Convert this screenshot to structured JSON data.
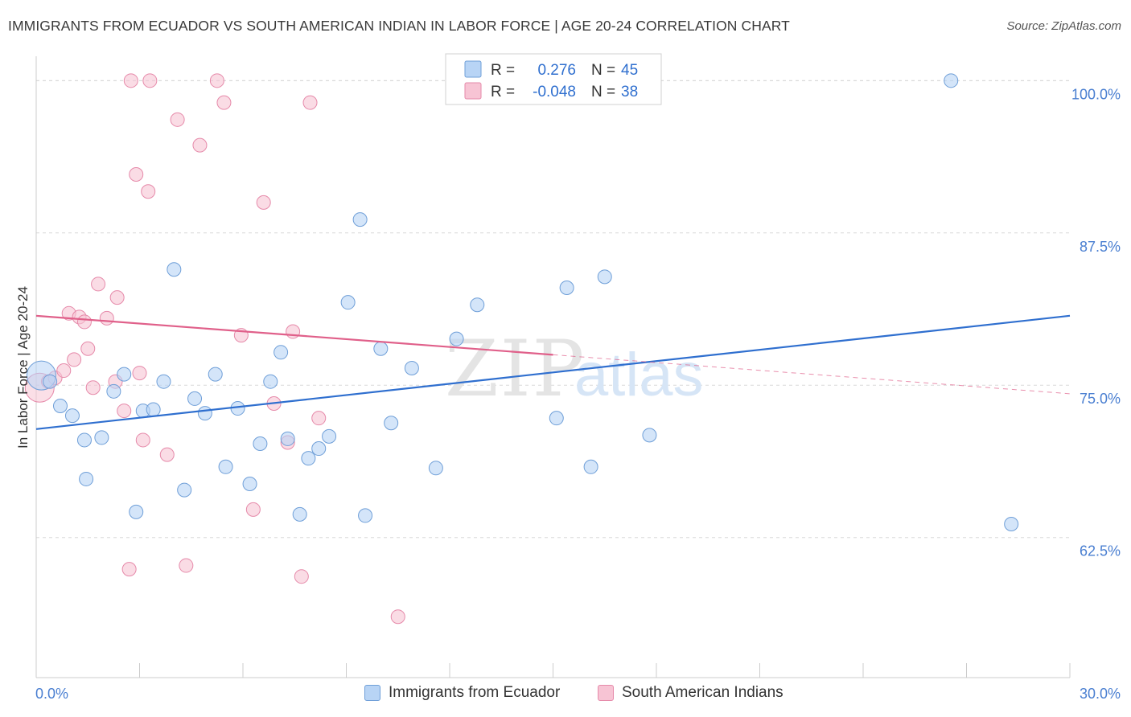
{
  "title": "IMMIGRANTS FROM ECUADOR VS SOUTH AMERICAN INDIAN IN LABOR FORCE | AGE 20-24 CORRELATION CHART",
  "source": "Source: ZipAtlas.com",
  "watermark": {
    "zip": "ZIP",
    "atlas": "atlas"
  },
  "colors": {
    "blue_fill": "#b8d4f5",
    "blue_stroke": "#6f9fd8",
    "blue_line": "#2f6fcf",
    "pink_fill": "#f7c4d4",
    "pink_stroke": "#e68aaa",
    "pink_line": "#e0608a",
    "axis_label": "#4a7fd1",
    "grid": "#d8d8d8"
  },
  "stats_legend": {
    "rows": [
      {
        "r_label": "R =",
        "r_value": "0.276",
        "n_label": "N =",
        "n_value": "45",
        "series": "blue"
      },
      {
        "r_label": "R =",
        "r_value": "-0.048",
        "n_label": "N =",
        "n_value": "38",
        "series": "pink"
      }
    ]
  },
  "chart_data": {
    "type": "scatter",
    "title": "IMMIGRANTS FROM ECUADOR VS SOUTH AMERICAN INDIAN IN LABOR FORCE | AGE 20-24 CORRELATION CHART",
    "xlabel": "",
    "ylabel": "In Labor Force | Age 20-24",
    "xlim": [
      0,
      30
    ],
    "ylim": [
      51,
      102
    ],
    "x_tick_labels": [
      "0.0%",
      "30.0%"
    ],
    "y_ticks": [
      62.5,
      75.0,
      87.5,
      100.0
    ],
    "y_tick_labels": [
      "62.5%",
      "75.0%",
      "87.5%",
      "100.0%"
    ],
    "grid": true,
    "legend_position": "bottom",
    "series": [
      {
        "name": "Immigrants from Ecuador",
        "color": "blue",
        "trend": {
          "x": [
            0,
            30
          ],
          "y": [
            71.4,
            80.7
          ]
        },
        "points": [
          [
            0.15,
            75.8
          ],
          [
            0.4,
            75.3
          ],
          [
            0.7,
            73.3
          ],
          [
            1.05,
            72.5
          ],
          [
            1.4,
            70.5
          ],
          [
            1.45,
            67.3
          ],
          [
            1.9,
            70.7
          ],
          [
            2.25,
            74.5
          ],
          [
            2.55,
            75.9
          ],
          [
            2.9,
            64.6
          ],
          [
            3.1,
            72.9
          ],
          [
            3.4,
            73.0
          ],
          [
            3.7,
            75.3
          ],
          [
            4.0,
            84.5
          ],
          [
            4.3,
            66.4
          ],
          [
            4.6,
            73.9
          ],
          [
            4.9,
            72.7
          ],
          [
            5.2,
            75.9
          ],
          [
            5.5,
            68.3
          ],
          [
            5.85,
            73.1
          ],
          [
            6.2,
            66.9
          ],
          [
            6.5,
            70.2
          ],
          [
            6.8,
            75.3
          ],
          [
            7.1,
            77.7
          ],
          [
            7.3,
            70.6
          ],
          [
            7.65,
            64.4
          ],
          [
            7.9,
            69.0
          ],
          [
            8.2,
            69.8
          ],
          [
            8.5,
            70.8
          ],
          [
            9.05,
            81.8
          ],
          [
            9.55,
            64.3
          ],
          [
            9.4,
            88.6
          ],
          [
            10.0,
            78.0
          ],
          [
            10.3,
            71.9
          ],
          [
            10.9,
            76.4
          ],
          [
            11.6,
            68.2
          ],
          [
            12.2,
            78.8
          ],
          [
            12.8,
            81.6
          ],
          [
            15.1,
            72.3
          ],
          [
            15.4,
            83.0
          ],
          [
            16.1,
            68.3
          ],
          [
            16.5,
            83.9
          ],
          [
            17.8,
            70.9
          ],
          [
            26.55,
            100.0
          ],
          [
            28.3,
            63.6
          ]
        ]
      },
      {
        "name": "South American Indians",
        "color": "pink",
        "trend": {
          "x": [
            0,
            15
          ],
          "y": [
            80.7,
            77.5
          ]
        },
        "trend_dashed": {
          "x": [
            15,
            30
          ],
          "y": [
            77.5,
            74.3
          ]
        },
        "points": [
          [
            0.1,
            74.8
          ],
          [
            0.35,
            75.3
          ],
          [
            0.55,
            75.6
          ],
          [
            0.8,
            76.2
          ],
          [
            0.95,
            80.9
          ],
          [
            1.1,
            77.1
          ],
          [
            1.25,
            80.6
          ],
          [
            1.4,
            80.2
          ],
          [
            1.5,
            78.0
          ],
          [
            1.65,
            74.8
          ],
          [
            1.8,
            83.3
          ],
          [
            2.05,
            80.5
          ],
          [
            2.3,
            75.3
          ],
          [
            2.35,
            82.2
          ],
          [
            2.55,
            72.9
          ],
          [
            2.7,
            59.9
          ],
          [
            2.75,
            100.0
          ],
          [
            2.9,
            92.3
          ],
          [
            3.0,
            76.0
          ],
          [
            3.1,
            70.5
          ],
          [
            3.25,
            90.9
          ],
          [
            3.3,
            100.0
          ],
          [
            3.8,
            69.3
          ],
          [
            4.1,
            96.8
          ],
          [
            4.35,
            60.2
          ],
          [
            4.75,
            94.7
          ],
          [
            5.25,
            100.0
          ],
          [
            5.45,
            98.2
          ],
          [
            5.95,
            79.1
          ],
          [
            6.3,
            64.8
          ],
          [
            6.6,
            90.0
          ],
          [
            6.9,
            73.5
          ],
          [
            7.3,
            70.3
          ],
          [
            7.45,
            79.4
          ],
          [
            7.7,
            59.3
          ],
          [
            7.95,
            98.2
          ],
          [
            8.2,
            72.3
          ],
          [
            10.5,
            56.0
          ]
        ]
      }
    ]
  },
  "bottom_legend": {
    "items": [
      {
        "label": "Immigrants from Ecuador",
        "series": "blue"
      },
      {
        "label": "South American Indians",
        "series": "pink"
      }
    ]
  }
}
